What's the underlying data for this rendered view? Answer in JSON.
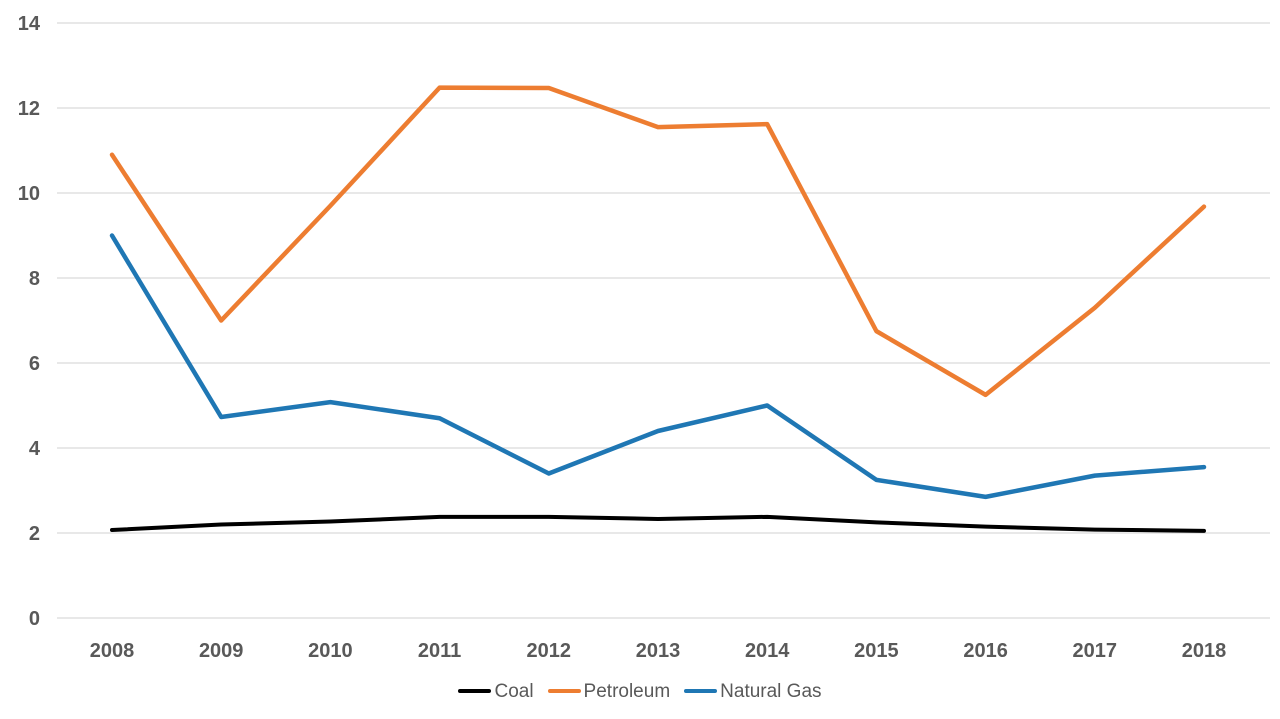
{
  "chart_data": {
    "type": "line",
    "title": "",
    "xlabel": "",
    "ylabel": "",
    "categories": [
      "2008",
      "2009",
      "2010",
      "2011",
      "2012",
      "2013",
      "2014",
      "2015",
      "2016",
      "2017",
      "2018"
    ],
    "yticks": [
      0,
      2,
      4,
      6,
      8,
      10,
      12,
      14
    ],
    "ylim": [
      0,
      14
    ],
    "grid": true,
    "legend_position": "bottom",
    "series": [
      {
        "name": "Coal",
        "color": "#000000",
        "values": [
          2.07,
          2.2,
          2.27,
          2.38,
          2.38,
          2.33,
          2.38,
          2.25,
          2.15,
          2.08,
          2.05
        ]
      },
      {
        "name": "Petroleum",
        "color": "#ED7D31",
        "values": [
          10.9,
          7.0,
          9.7,
          12.48,
          12.47,
          11.55,
          11.62,
          6.75,
          5.25,
          7.3,
          9.68
        ]
      },
      {
        "name": "Natural Gas",
        "color": "#1F77B4",
        "values": [
          9.0,
          4.73,
          5.08,
          4.7,
          3.4,
          4.4,
          5.0,
          3.25,
          2.85,
          3.35,
          3.55
        ]
      }
    ],
    "colors": {
      "axis_label": "#595959",
      "gridline": "#D9D9D9",
      "background": "#FFFFFF"
    }
  }
}
